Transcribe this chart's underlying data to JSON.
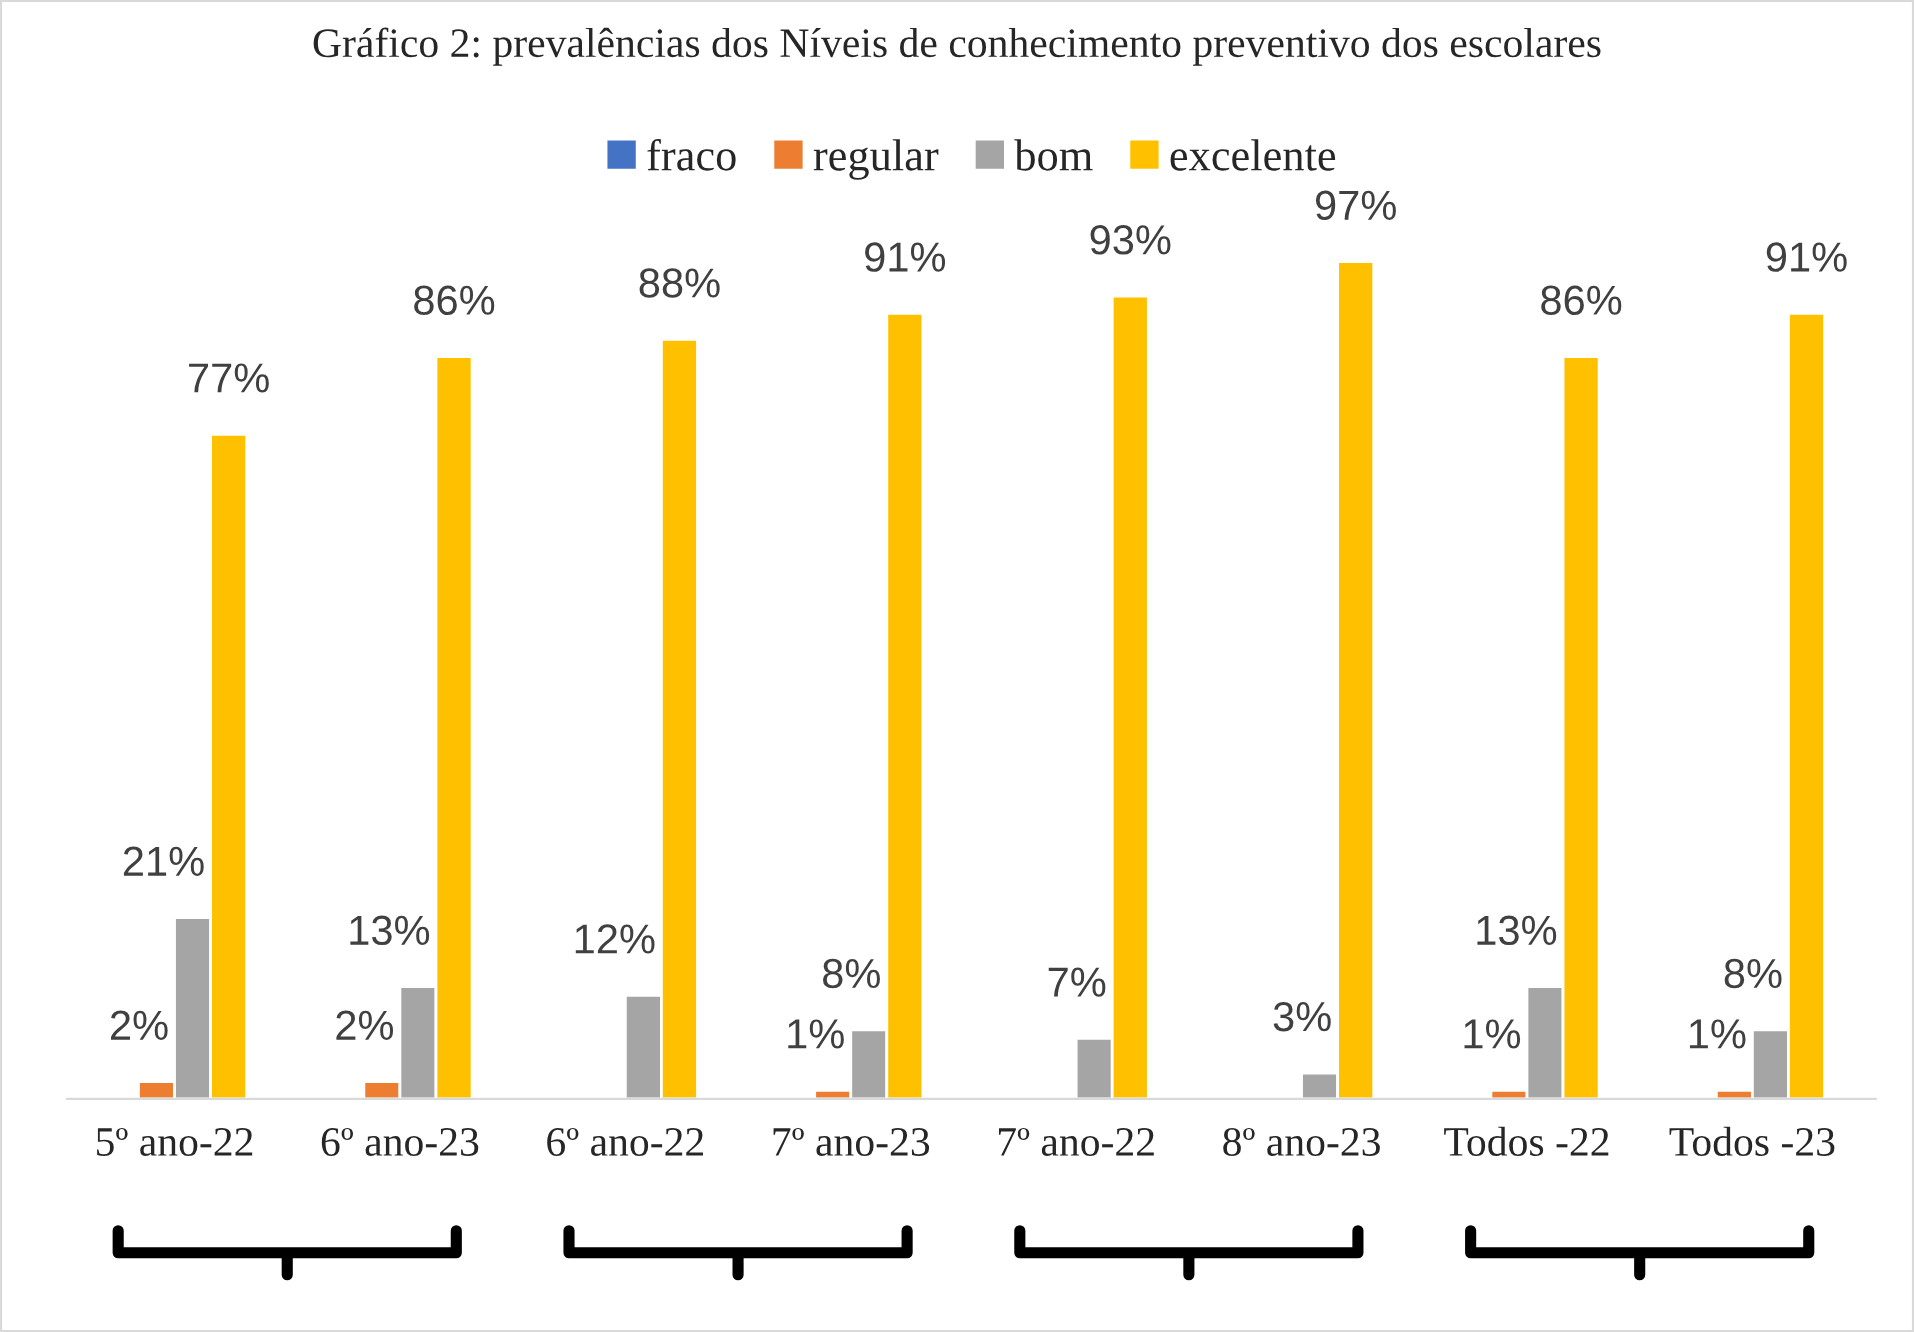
{
  "chart_data": {
    "type": "bar",
    "title": "Gráfico 2: prevalências dos Níveis de conhecimento preventivo dos escolares",
    "categories": [
      "5º ano-22",
      "6º ano-23",
      "6º ano-22",
      "7º ano-23",
      "7º ano-22",
      "8º ano-23",
      "Todos -22",
      "Todos -23"
    ],
    "series": [
      {
        "name": "fraco",
        "color": "#4472c4",
        "values": [
          null,
          null,
          null,
          null,
          null,
          null,
          null,
          null
        ],
        "value_labels": [
          null,
          null,
          null,
          null,
          null,
          null,
          null,
          null
        ]
      },
      {
        "name": "regular",
        "color": "#ed7d31",
        "values": [
          2,
          2,
          null,
          1,
          null,
          null,
          1,
          1
        ],
        "value_labels": [
          "2%",
          "2%",
          null,
          "1%",
          null,
          null,
          "1%",
          "1%"
        ]
      },
      {
        "name": "bom",
        "color": "#a5a5a5",
        "values": [
          21,
          13,
          12,
          8,
          7,
          3,
          13,
          8
        ],
        "value_labels": [
          "21%",
          "13%",
          "12%",
          "8%",
          "7%",
          "3%",
          "13%",
          "8%"
        ]
      },
      {
        "name": "excelente",
        "color": "#ffc000",
        "values": [
          77,
          86,
          88,
          91,
          93,
          97,
          86,
          91
        ],
        "value_labels": [
          "77%",
          "86%",
          "88%",
          "91%",
          "93%",
          "97%",
          "86%",
          "91%"
        ]
      }
    ],
    "legend": "top",
    "grid": false
  }
}
